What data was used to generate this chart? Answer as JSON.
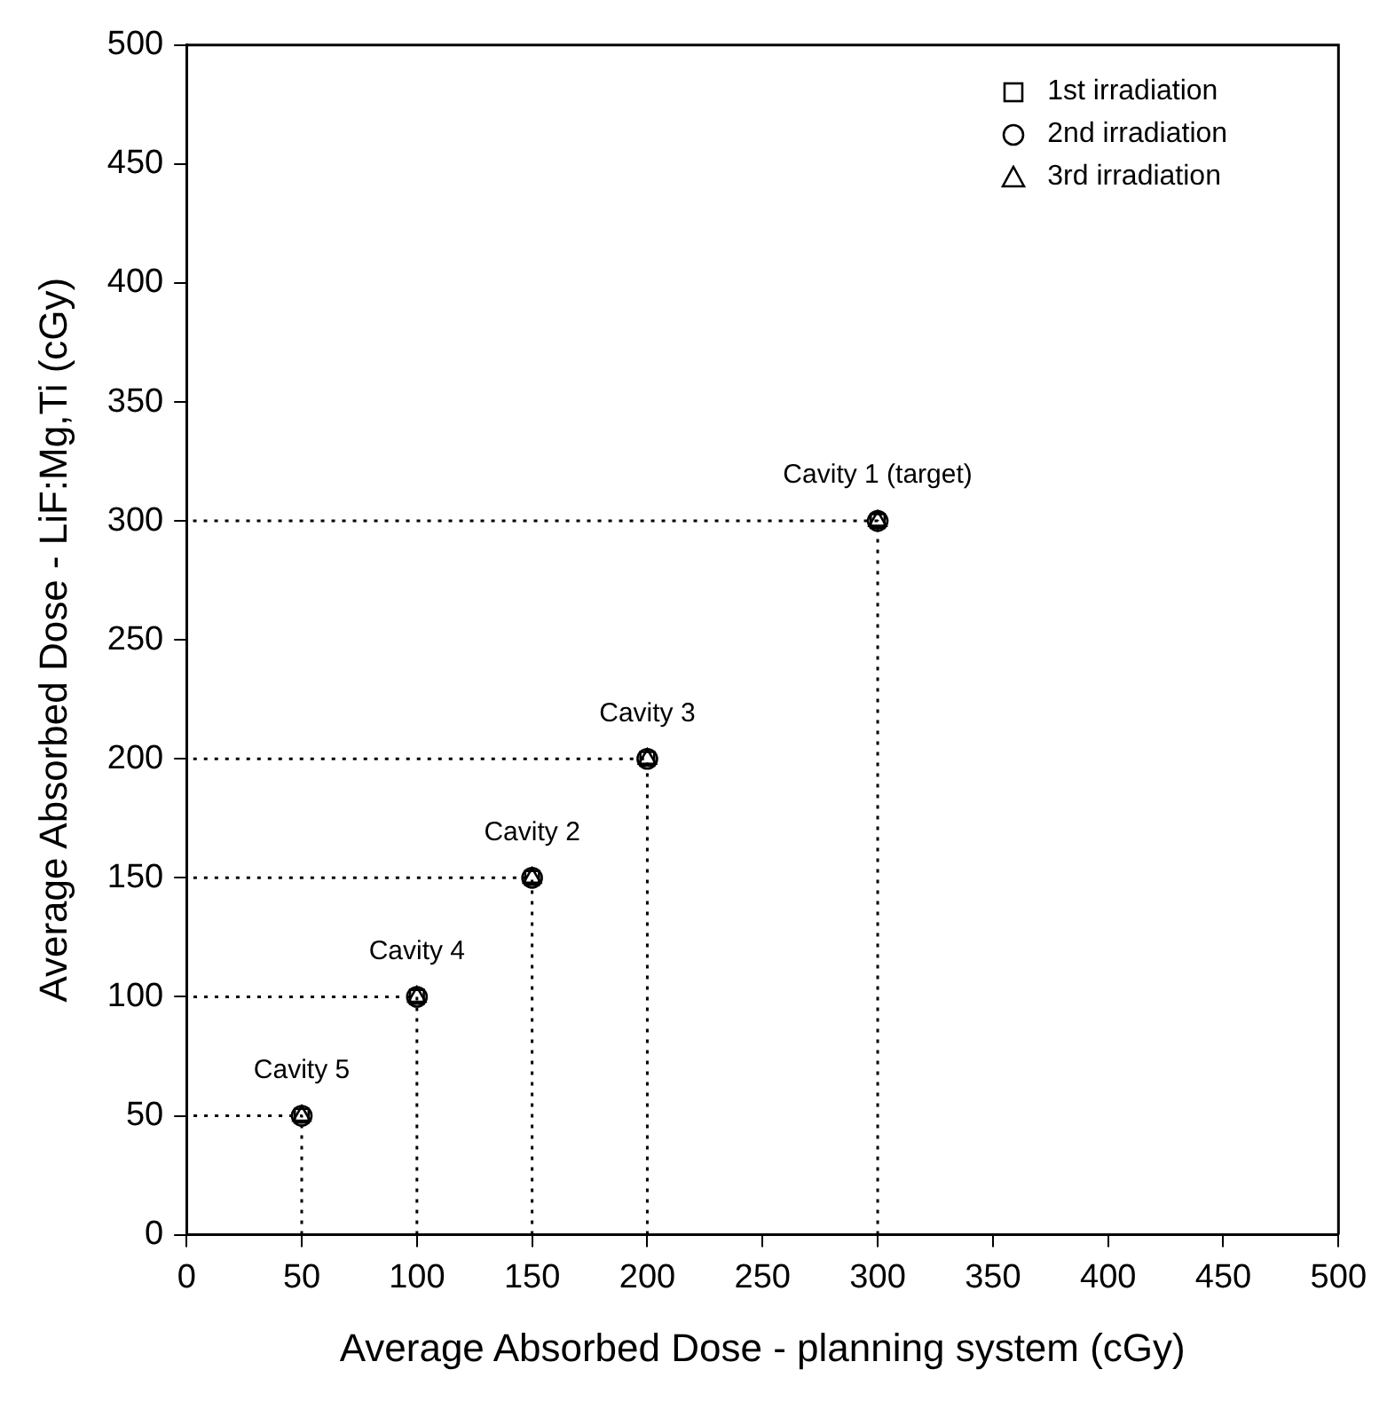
{
  "chart_data": {
    "type": "scatter",
    "xlabel": "Average Absorbed Dose - planning system (cGy)",
    "ylabel": "Average Absorbed Dose - LiF:Mg,Ti (cGy)",
    "xlim": [
      0,
      500
    ],
    "ylim": [
      0,
      500
    ],
    "xticks": [
      0,
      50,
      100,
      150,
      200,
      250,
      300,
      350,
      400,
      450,
      500
    ],
    "yticks": [
      0,
      50,
      100,
      150,
      200,
      250,
      300,
      350,
      400,
      450,
      500
    ],
    "grid": false,
    "legend": "top right",
    "series": [
      {
        "type": "line",
        "color": "#000000",
        "line_style": "dotted",
        "marker": "none",
        "x": [
          50,
          50,
          0
        ],
        "values": [
          0,
          50,
          50
        ]
      },
      {
        "type": "line",
        "color": "#000000",
        "line_style": "dotted",
        "marker": "none",
        "x": [
          100,
          100,
          0
        ],
        "values": [
          0,
          100,
          100
        ]
      },
      {
        "type": "line",
        "color": "#000000",
        "line_style": "dotted",
        "marker": "none",
        "x": [
          150,
          150,
          0
        ],
        "values": [
          0,
          150,
          150
        ]
      },
      {
        "type": "line",
        "color": "#000000",
        "line_style": "dotted",
        "marker": "none",
        "x": [
          200,
          200,
          0
        ],
        "values": [
          0,
          200,
          200
        ]
      },
      {
        "type": "line",
        "color": "#000000",
        "line_style": "dotted",
        "marker": "none",
        "x": [
          300,
          300,
          0
        ],
        "values": [
          0,
          300,
          300
        ]
      },
      {
        "name": "1st irradiation",
        "color": "#000000",
        "marker": "square",
        "x": [
          50,
          100,
          150,
          200,
          300
        ],
        "values": [
          50,
          100,
          150,
          200,
          300
        ]
      },
      {
        "name": "2nd irradiation",
        "color": "#000000",
        "marker": "circle",
        "x": [
          50,
          100,
          150,
          200,
          300
        ],
        "values": [
          50,
          100,
          150,
          200,
          300
        ]
      },
      {
        "name": "3rd irradiation",
        "color": "#000000",
        "marker": "triangle",
        "x": [
          50,
          100,
          150,
          200,
          300
        ],
        "values": [
          50,
          100,
          150,
          200,
          300
        ]
      }
    ],
    "annotations": [
      {
        "text": "Cavity 1 (target)",
        "x": 300,
        "y": 300
      },
      {
        "text": "Cavity 3",
        "x": 200,
        "y": 200
      },
      {
        "text": "Cavity 2",
        "x": 150,
        "y": 150
      },
      {
        "text": "Cavity 4",
        "x": 100,
        "y": 100
      },
      {
        "text": "Cavity 5",
        "x": 50,
        "y": 50
      }
    ]
  }
}
